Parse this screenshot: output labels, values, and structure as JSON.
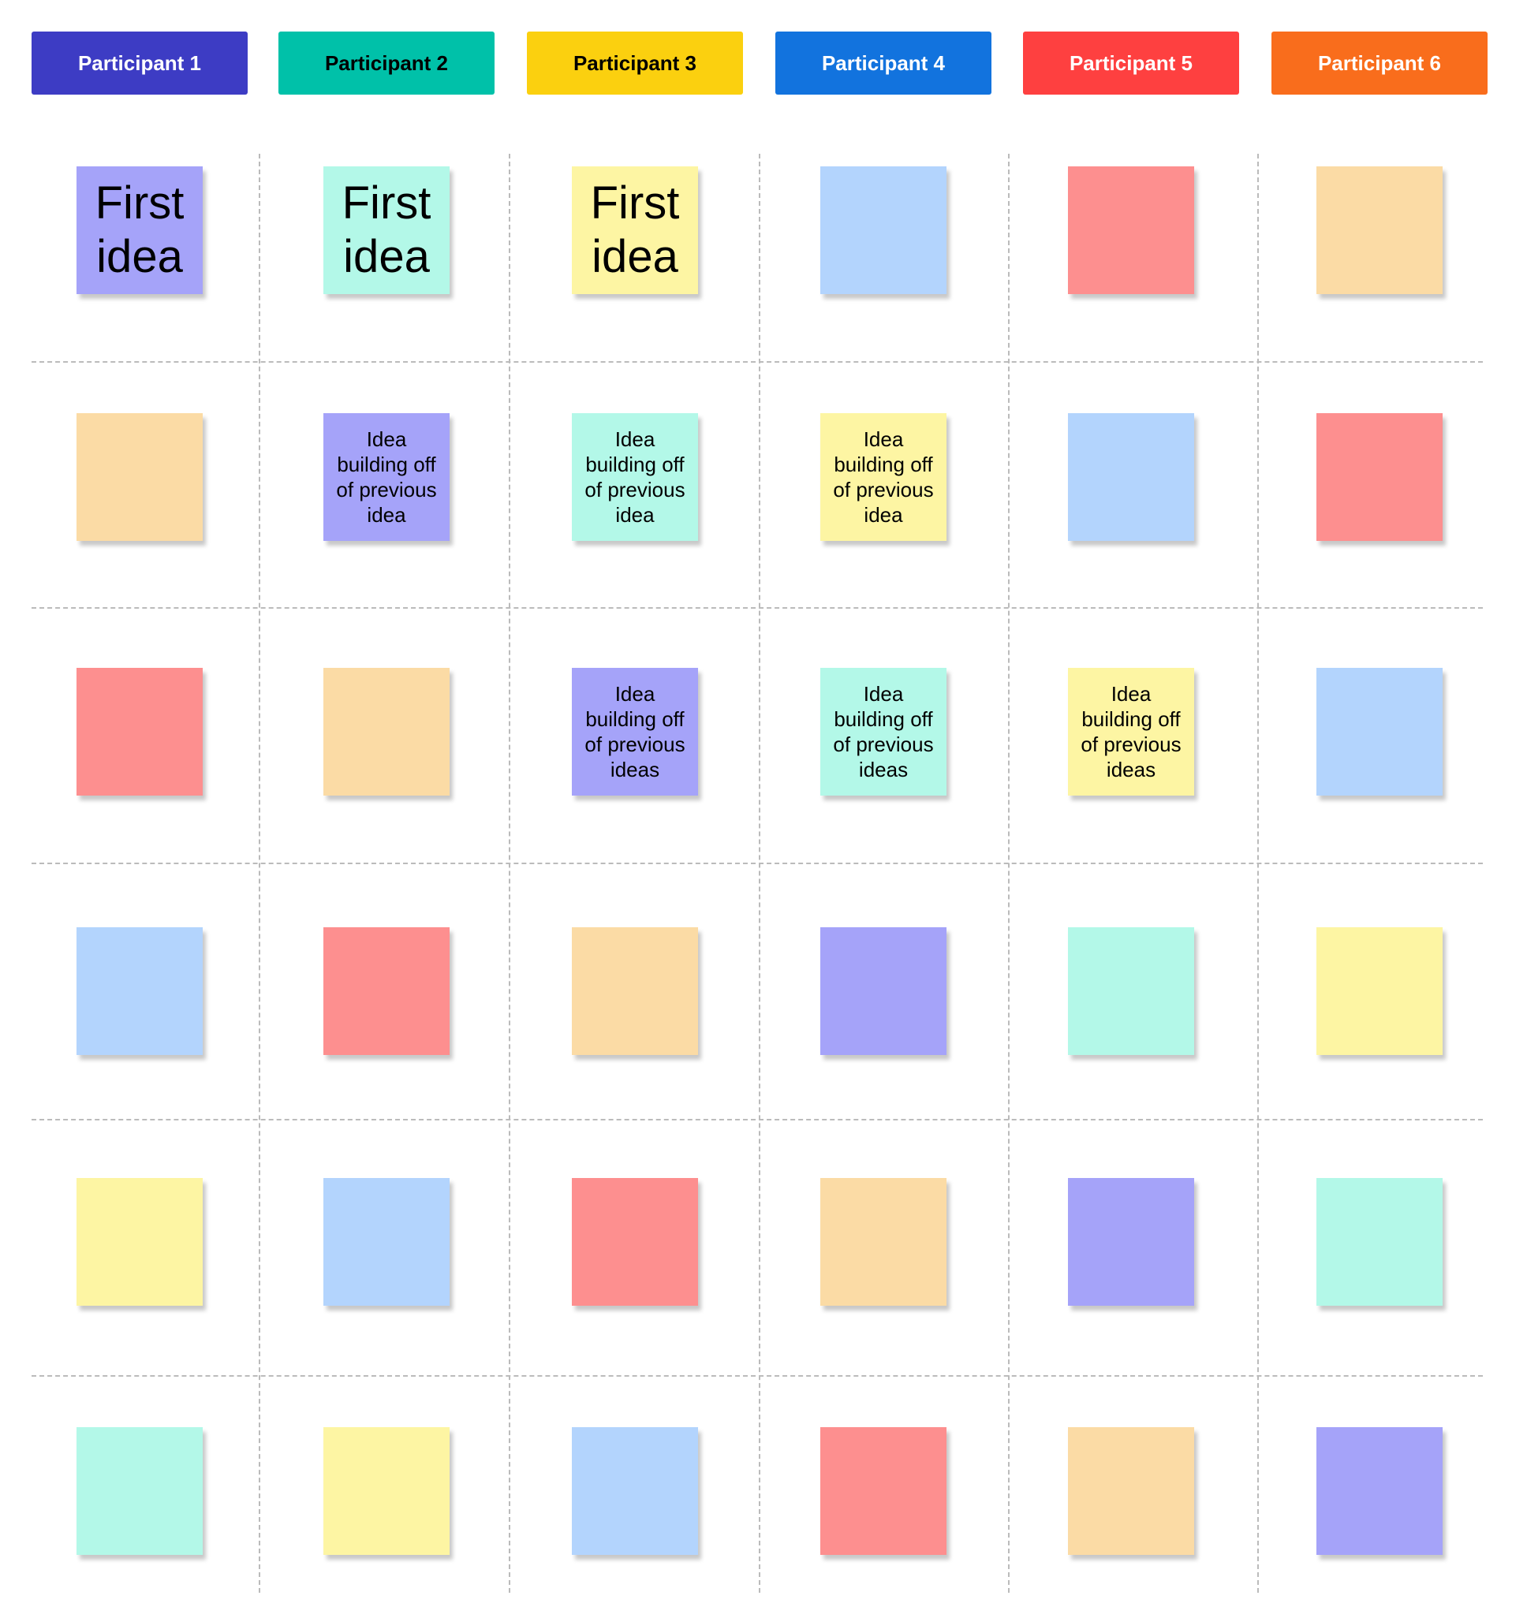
{
  "headers": [
    {
      "label": "Participant 1",
      "color": "#3d3cc4",
      "text_color": "#ffffff"
    },
    {
      "label": "Participant 2",
      "color": "#00c1a9",
      "text_color": "#000000"
    },
    {
      "label": "Participant 3",
      "color": "#fbd00f",
      "text_color": "#000000"
    },
    {
      "label": "Participant 4",
      "color": "#1273de",
      "text_color": "#ffffff"
    },
    {
      "label": "Participant 5",
      "color": "#fe4040",
      "text_color": "#ffffff"
    },
    {
      "label": "Participant 6",
      "color": "#f96d1c",
      "text_color": "#ffffff"
    }
  ],
  "notes": [
    [
      {
        "color": "#a5a3f9",
        "text": "First idea"
      },
      {
        "color": "#b3f8e8",
        "text": "First idea"
      },
      {
        "color": "#fdf5a3",
        "text": "First idea"
      },
      {
        "color": "#b3d4fd"
      },
      {
        "color": "#fd8f8f"
      },
      {
        "color": "#fbdba5"
      }
    ],
    [
      {
        "color": "#fbdba5"
      },
      {
        "color": "#a5a3f9",
        "text": "Idea building off of previous idea"
      },
      {
        "color": "#b3f8e8",
        "text": "Idea building off of previous idea"
      },
      {
        "color": "#fdf5a3",
        "text": "Idea building off of previous idea"
      },
      {
        "color": "#b3d4fd"
      },
      {
        "color": "#fd8f8f"
      }
    ],
    [
      {
        "color": "#fd8f8f"
      },
      {
        "color": "#fbdba5"
      },
      {
        "color": "#a5a3f9",
        "text": "Idea building off of previous ideas"
      },
      {
        "color": "#b3f8e8",
        "text": "Idea building off of previous ideas"
      },
      {
        "color": "#fdf5a3",
        "text": "Idea building off of previous ideas"
      },
      {
        "color": "#b3d4fd"
      }
    ],
    [
      {
        "color": "#b3d4fd"
      },
      {
        "color": "#fd8f8f"
      },
      {
        "color": "#fbdba5"
      },
      {
        "color": "#a5a3f9"
      },
      {
        "color": "#b3f8e8"
      },
      {
        "color": "#fdf5a3"
      }
    ],
    [
      {
        "color": "#fdf5a3"
      },
      {
        "color": "#b3d4fd"
      },
      {
        "color": "#fd8f8f"
      },
      {
        "color": "#fbdba5"
      },
      {
        "color": "#a5a3f9"
      },
      {
        "color": "#b3f8e8"
      }
    ],
    [
      {
        "color": "#b3f8e8"
      },
      {
        "color": "#fdf5a3"
      },
      {
        "color": "#b3d4fd"
      },
      {
        "color": "#fd8f8f"
      },
      {
        "color": "#fbdba5"
      },
      {
        "color": "#a5a3f9"
      }
    ]
  ]
}
